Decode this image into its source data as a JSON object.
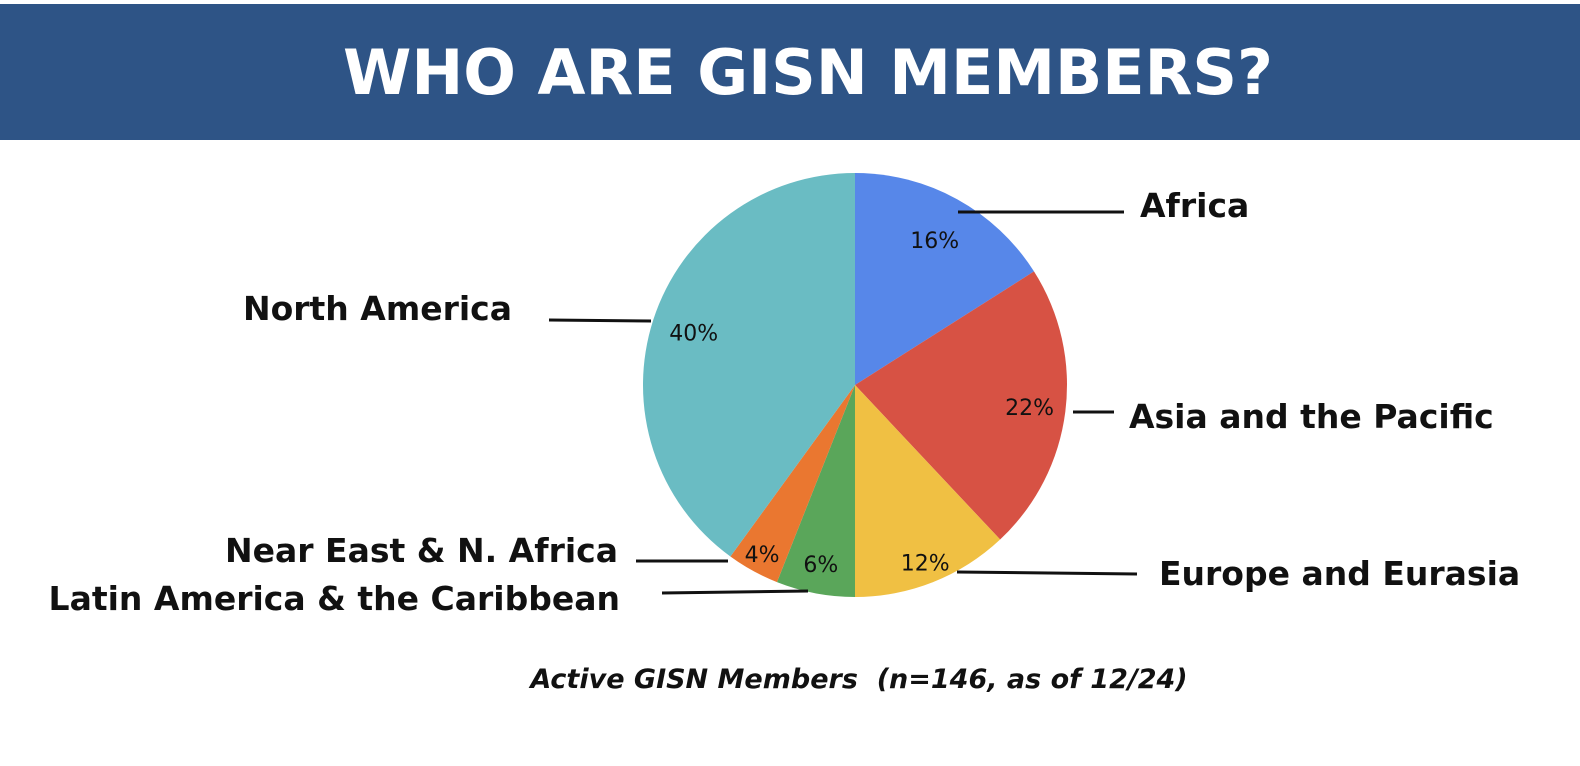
{
  "header": {
    "title": "WHO ARE GISN MEMBERS?"
  },
  "chart_data": {
    "type": "pie",
    "title": "WHO ARE GISN MEMBERS?",
    "caption": "Active GISN Members  (n=146, as of 12/24)",
    "slices": [
      {
        "label": "Africa",
        "value": 16,
        "value_label": "16%",
        "color": "#5787e9"
      },
      {
        "label": "Asia and the Pacific",
        "value": 22,
        "value_label": "22%",
        "color": "#d75244"
      },
      {
        "label": "Europe and Eurasia",
        "value": 12,
        "value_label": "12%",
        "color": "#f0c043"
      },
      {
        "label": "Latin America & the Caribbean",
        "value": 6,
        "value_label": "6%",
        "color": "#5aa65a"
      },
      {
        "label": "Near East & N. Africa",
        "value": 4,
        "value_label": "4%",
        "color": "#ea7730"
      },
      {
        "label": "North America",
        "value": 40,
        "value_label": "40%",
        "color": "#6abcc3"
      }
    ],
    "legend": "none",
    "start_angle": "12 o'clock",
    "direction": "clockwise"
  }
}
